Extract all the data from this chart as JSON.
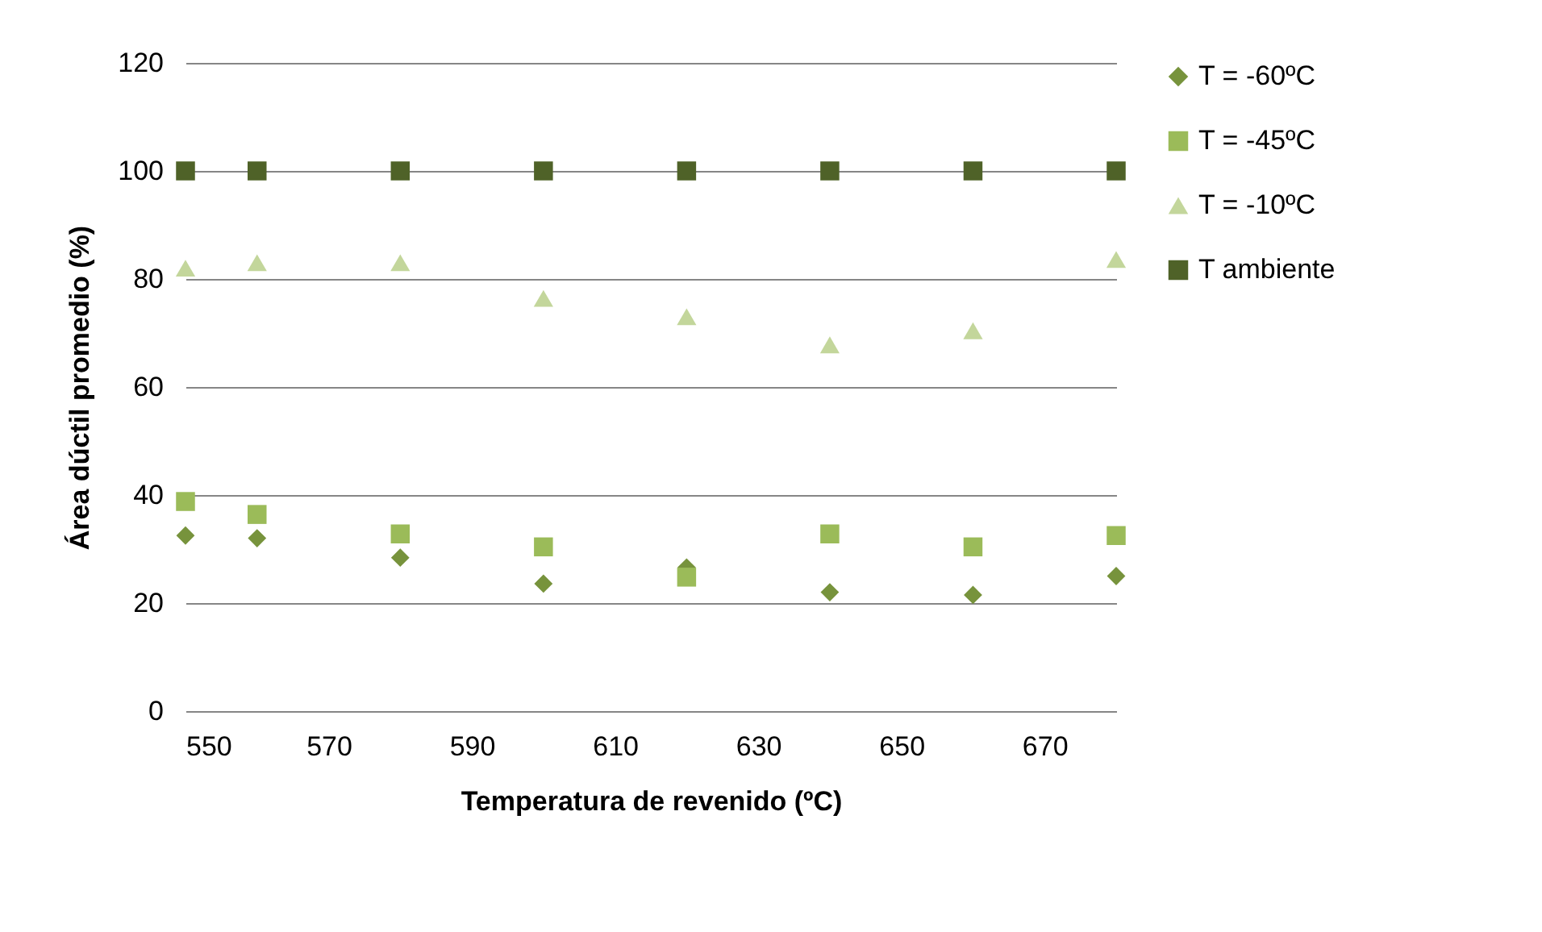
{
  "chart_data": {
    "type": "scatter",
    "xlabel": "Temperatura de revenido (ºC)",
    "ylabel": "Área dúctil promedio (%)",
    "x": [
      550,
      560,
      580,
      600,
      620,
      640,
      660,
      680
    ],
    "xlim": [
      550,
      680
    ],
    "xticks": [
      550,
      570,
      590,
      610,
      630,
      650,
      670
    ],
    "ylim": [
      0,
      120
    ],
    "yticks": [
      0,
      20,
      40,
      60,
      80,
      100,
      120
    ],
    "grid": "y",
    "legend": "right",
    "series": [
      {
        "name": "T = -60ºC",
        "color": "#77933c",
        "marker": "diamond",
        "values": [
          32.5,
          32,
          28.4,
          23.6,
          26.6,
          22,
          21.5,
          25
        ]
      },
      {
        "name": "T = -45ºC",
        "color": "#9bbb59",
        "marker": "square",
        "values": [
          38.8,
          36.4,
          32.8,
          30.4,
          24.8,
          32.8,
          30.4,
          32.5
        ]
      },
      {
        "name": "T = -10ºC",
        "color": "#c3d69b",
        "marker": "triangle",
        "values": [
          82,
          83,
          83,
          76.4,
          73,
          67.8,
          70.4,
          83.6
        ]
      },
      {
        "name": "T ambiente",
        "color": "#4f6228",
        "marker": "square",
        "values": [
          100,
          100,
          100,
          100,
          100,
          100,
          100,
          100
        ]
      }
    ]
  }
}
